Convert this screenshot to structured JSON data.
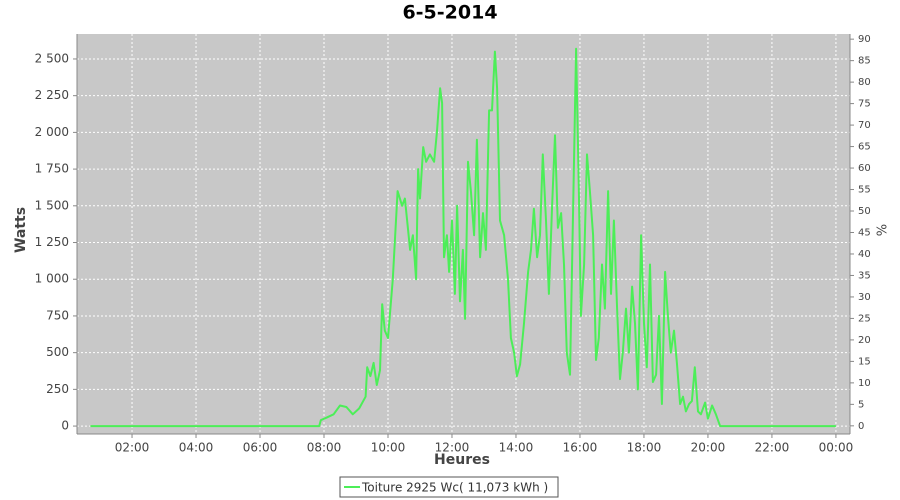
{
  "chart_data": {
    "type": "line",
    "title": "6-5-2014",
    "xlabel": "Heures",
    "ylabel": "Watts",
    "y2label": "%",
    "grid": true,
    "legend": "bottom",
    "xlim": [
      0.28,
      24.44
    ],
    "ylim": [
      -54,
      2670
    ],
    "y2lim": [
      -1.9,
      91.2
    ],
    "xticks": [
      {
        "value": 2,
        "label": "02:00"
      },
      {
        "value": 4,
        "label": "04:00"
      },
      {
        "value": 6,
        "label": "06:00"
      },
      {
        "value": 8,
        "label": "08:00"
      },
      {
        "value": 10,
        "label": "10:00"
      },
      {
        "value": 12,
        "label": "12:00"
      },
      {
        "value": 14,
        "label": "14:00"
      },
      {
        "value": 16,
        "label": "16:00"
      },
      {
        "value": 18,
        "label": "18:00"
      },
      {
        "value": 20,
        "label": "20:00"
      },
      {
        "value": 22,
        "label": "22:00"
      },
      {
        "value": 24,
        "label": "00:00"
      }
    ],
    "yticks": [
      0,
      250,
      500,
      750,
      {
        "value": 1000,
        "label": "1 000"
      },
      {
        "value": 1250,
        "label": "1 250"
      },
      {
        "value": 1500,
        "label": "1 500"
      },
      {
        "value": 1750,
        "label": "1 750"
      },
      {
        "value": 2000,
        "label": "2 000"
      },
      {
        "value": 2250,
        "label": "2 250"
      },
      {
        "value": 2500,
        "label": "2 500"
      }
    ],
    "y2ticks": [
      0,
      5,
      10,
      15,
      20,
      25,
      30,
      35,
      40,
      45,
      50,
      55,
      60,
      65,
      70,
      75,
      80,
      85,
      90
    ],
    "x": [
      0.7,
      7.85,
      7.9,
      8.1,
      8.3,
      8.5,
      8.7,
      8.9,
      9.1,
      9.3,
      9.35,
      9.45,
      9.55,
      9.65,
      9.75,
      9.82,
      9.9,
      10.0,
      10.15,
      10.3,
      10.44,
      10.53,
      10.69,
      10.78,
      10.88,
      10.94,
      11.0,
      11.1,
      11.19,
      11.31,
      11.44,
      11.53,
      11.63,
      11.69,
      11.75,
      11.84,
      11.91,
      12.0,
      12.09,
      12.16,
      12.25,
      12.34,
      12.41,
      12.5,
      12.59,
      12.69,
      12.78,
      12.88,
      12.97,
      13.06,
      13.16,
      13.25,
      13.34,
      13.41,
      13.5,
      13.63,
      13.75,
      13.84,
      13.94,
      14.03,
      14.13,
      14.25,
      14.38,
      14.47,
      14.56,
      14.66,
      14.75,
      14.84,
      14.94,
      15.03,
      15.13,
      15.22,
      15.31,
      15.41,
      15.5,
      15.59,
      15.69,
      15.78,
      15.88,
      15.97,
      16.03,
      16.13,
      16.22,
      16.31,
      16.41,
      16.5,
      16.59,
      16.69,
      16.78,
      16.88,
      16.97,
      17.06,
      17.16,
      17.25,
      17.34,
      17.44,
      17.53,
      17.63,
      17.72,
      17.81,
      17.91,
      18.0,
      18.09,
      18.19,
      18.28,
      18.38,
      18.47,
      18.56,
      18.66,
      18.75,
      18.84,
      18.94,
      19.03,
      19.13,
      19.22,
      19.31,
      19.41,
      19.5,
      19.59,
      19.69,
      19.78,
      19.91,
      20.0,
      20.13,
      20.25,
      20.38,
      20.53,
      24.0
    ],
    "series": [
      {
        "name": "Toiture 2925 Wc( 11,073 kWh )",
        "color": "#4cee58",
        "values": [
          0,
          0,
          40,
          60,
          80,
          140,
          130,
          80,
          120,
          200,
          400,
          340,
          430,
          280,
          380,
          830,
          650,
          600,
          1000,
          1600,
          1500,
          1550,
          1200,
          1300,
          1000,
          1750,
          1550,
          1900,
          1800,
          1850,
          1800,
          2000,
          2300,
          2200,
          1150,
          1300,
          1050,
          1400,
          900,
          1500,
          850,
          1200,
          730,
          1800,
          1600,
          1300,
          1950,
          1150,
          1450,
          1200,
          2150,
          2150,
          2550,
          2300,
          1400,
          1300,
          1000,
          600,
          500,
          340,
          420,
          700,
          1050,
          1200,
          1480,
          1150,
          1300,
          1850,
          1400,
          900,
          1500,
          1980,
          1350,
          1450,
          1100,
          500,
          350,
          1400,
          2570,
          1550,
          750,
          1100,
          1850,
          1600,
          1300,
          450,
          600,
          1100,
          800,
          1600,
          900,
          1400,
          800,
          320,
          500,
          800,
          500,
          950,
          700,
          250,
          1300,
          700,
          400,
          1100,
          300,
          350,
          750,
          150,
          1050,
          750,
          500,
          650,
          430,
          150,
          200,
          100,
          150,
          170,
          400,
          100,
          80,
          160,
          50,
          140,
          80,
          0,
          0,
          0
        ]
      }
    ]
  }
}
